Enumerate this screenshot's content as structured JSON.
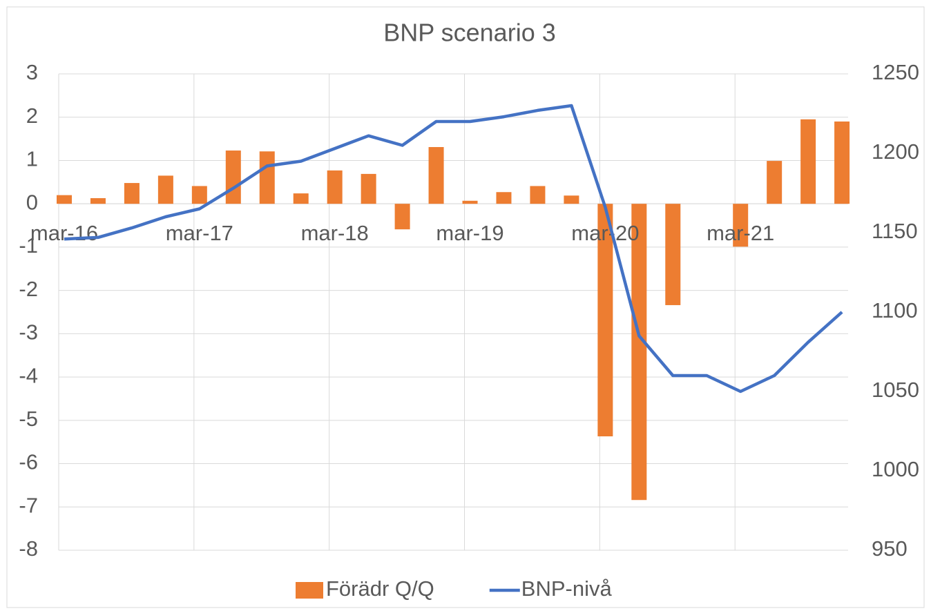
{
  "chart_data": {
    "type": "bar-line",
    "title": "BNP scenario 3",
    "categories": [
      "mar-16",
      null,
      null,
      null,
      "mar-17",
      null,
      null,
      null,
      "mar-18",
      null,
      null,
      null,
      "mar-19",
      null,
      null,
      null,
      "mar-20",
      null,
      null,
      null,
      "mar-21",
      null,
      null,
      null
    ],
    "series": [
      {
        "name": "Förädr Q/Q",
        "type": "bar",
        "color": "#ed7d31",
        "axis": "y",
        "values": [
          0.2,
          0.13,
          0.48,
          0.65,
          0.41,
          1.23,
          1.21,
          0.24,
          0.77,
          0.69,
          -0.59,
          1.31,
          0.07,
          0.27,
          0.41,
          0.19,
          -5.37,
          -6.84,
          -2.34,
          0,
          -0.99,
          0.99,
          1.95,
          1.9
        ]
      },
      {
        "name": "BNP-nivå",
        "type": "line",
        "color": "#4472c4",
        "axis": "y2",
        "values": [
          1146,
          1147,
          1153,
          1160,
          1165,
          1178,
          1192,
          1195,
          1203,
          1211,
          1205,
          1220,
          1220,
          1223,
          1227,
          1230,
          1166,
          1085,
          1060,
          1060,
          1050,
          1060,
          1081,
          1100
        ]
      }
    ],
    "ylim": [
      -8,
      3
    ],
    "yticks": [
      3,
      2,
      1,
      0,
      -1,
      -2,
      -3,
      -4,
      -5,
      -6,
      -7,
      -8
    ],
    "y2lim": [
      950,
      1250
    ],
    "y2ticks": [
      1250,
      1200,
      1150,
      1100,
      1050,
      1000,
      950
    ],
    "grid": true,
    "legend": "bottom"
  }
}
